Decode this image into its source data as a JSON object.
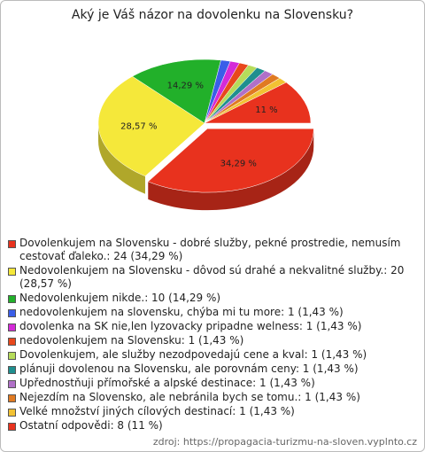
{
  "chart_data": {
    "type": "pie",
    "title": "Aký je Váš názor na dovolenku na Slovensku?",
    "categories": [
      "Dovolenkujem na Slovensku - dobré služby, pekné prostredie, nemusím cestovať ďaleko.: 24 (34,29 %)",
      "Nedovolenkujem na Slovensku - dôvod sú drahé a nekvalitné služby.: 20 (28,57 %)",
      "Nedovolenkujem nikde.: 10 (14,29 %)",
      "nedovolenkujem na slovensku, chýba mi tu more: 1 (1,43 %)",
      "dovolenka na SK nie,len lyzovacky pripadne welness: 1 (1,43 %)",
      "nedovolenkujem na Slovensku: 1 (1,43 %)",
      "Dovolenkujem, ale služby nezodpovedajú cene a kval: 1 (1,43 %)",
      "plánuji dovolenou na Slovensku, ale porovnám ceny: 1 (1,43 %)",
      "Upřednostňuji přímořské a alpské destinace: 1 (1,43 %)",
      "Nejezdím na Slovensko, ale nebránila bych se tomu.: 1 (1,43 %)",
      "Velké množství jiných cílových destinací: 1 (1,43 %)",
      "Ostatní odpovědi: 8 (11 %)"
    ],
    "values": [
      34.29,
      28.57,
      14.29,
      1.43,
      1.43,
      1.43,
      1.43,
      1.43,
      1.43,
      1.43,
      1.43,
      11
    ],
    "value_labels": [
      "34,29 %",
      "28,57 %",
      "14,29 %",
      null,
      null,
      null,
      null,
      null,
      null,
      null,
      null,
      "11 %"
    ],
    "colors": [
      "#e8321e",
      "#f5e83a",
      "#22b02a",
      "#3a5ee8",
      "#d42ad8",
      "#e8481c",
      "#b6dc5a",
      "#1f8f8f",
      "#b070c8",
      "#e07a22",
      "#f2c233"
    ],
    "source": "zdroj: https://propagacia-turizmu-na-sloven.vyplnto.cz"
  }
}
